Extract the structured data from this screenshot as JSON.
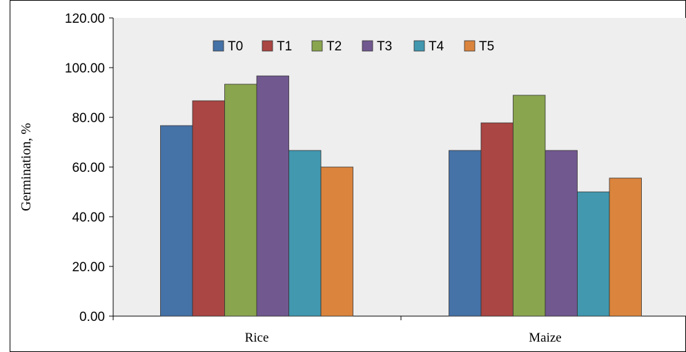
{
  "chart_data": {
    "type": "bar",
    "title": "",
    "xlabel": "",
    "ylabel": "Germination, %",
    "ylim": [
      0,
      120
    ],
    "yticks": [
      "0.00",
      "20.00",
      "40.00",
      "60.00",
      "80.00",
      "100.00",
      "120.00"
    ],
    "categories": [
      "Rice",
      "Maize"
    ],
    "series": [
      {
        "name": "T0",
        "color": "#4572A7",
        "values": [
          76.67,
          66.67
        ]
      },
      {
        "name": "T1",
        "color": "#AA4643",
        "values": [
          86.67,
          77.78
        ]
      },
      {
        "name": "T2",
        "color": "#89A54E",
        "values": [
          93.33,
          88.89
        ]
      },
      {
        "name": "T3",
        "color": "#71588F",
        "values": [
          96.67,
          66.67
        ]
      },
      {
        "name": "T4",
        "color": "#4198AF",
        "values": [
          66.67,
          50.0
        ]
      },
      {
        "name": "T5",
        "color": "#DB843D",
        "values": [
          60.0,
          55.56
        ]
      }
    ],
    "grid": false,
    "legend_position": "top-left inside plot",
    "plot_background": "#EEEEEE"
  }
}
